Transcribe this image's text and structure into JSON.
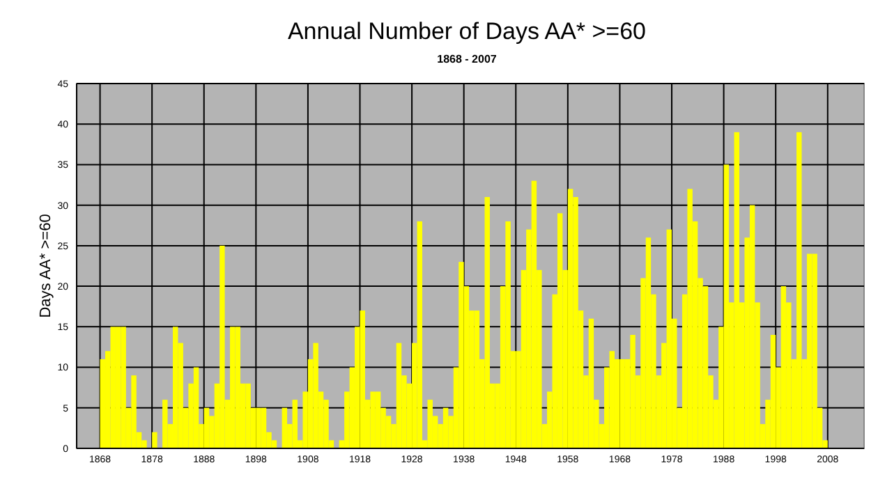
{
  "chart_data": {
    "type": "bar",
    "title": "Annual Number of Days AA* >=60",
    "subtitle": "1868 - 2007",
    "ylabel": "Days AA* >=60",
    "x": [
      1868,
      1869,
      1870,
      1871,
      1872,
      1873,
      1874,
      1875,
      1876,
      1877,
      1878,
      1879,
      1880,
      1881,
      1882,
      1883,
      1884,
      1885,
      1886,
      1887,
      1888,
      1889,
      1890,
      1891,
      1892,
      1893,
      1894,
      1895,
      1896,
      1897,
      1898,
      1899,
      1900,
      1901,
      1902,
      1903,
      1904,
      1905,
      1906,
      1907,
      1908,
      1909,
      1910,
      1911,
      1912,
      1913,
      1914,
      1915,
      1916,
      1917,
      1918,
      1919,
      1920,
      1921,
      1922,
      1923,
      1924,
      1925,
      1926,
      1927,
      1928,
      1929,
      1930,
      1931,
      1932,
      1933,
      1934,
      1935,
      1936,
      1937,
      1938,
      1939,
      1940,
      1941,
      1942,
      1943,
      1944,
      1945,
      1946,
      1947,
      1948,
      1949,
      1950,
      1951,
      1952,
      1953,
      1954,
      1955,
      1956,
      1957,
      1958,
      1959,
      1960,
      1961,
      1962,
      1963,
      1964,
      1965,
      1966,
      1967,
      1968,
      1969,
      1970,
      1971,
      1972,
      1973,
      1974,
      1975,
      1976,
      1977,
      1978,
      1979,
      1980,
      1981,
      1982,
      1983,
      1984,
      1985,
      1986,
      1987,
      1988,
      1989,
      1990,
      1991,
      1992,
      1993,
      1994,
      1995,
      1996,
      1997,
      1998,
      1999,
      2000,
      2001,
      2002,
      2003,
      2004,
      2005,
      2006,
      2007
    ],
    "values": [
      11,
      12,
      15,
      15,
      15,
      5,
      9,
      2,
      1,
      0,
      2,
      0,
      6,
      3,
      15,
      13,
      5,
      8,
      10,
      3,
      5,
      4,
      8,
      25,
      6,
      15,
      15,
      8,
      8,
      5,
      5,
      5,
      2,
      1,
      0,
      5,
      3,
      6,
      1,
      7,
      11,
      13,
      7,
      6,
      1,
      0,
      1,
      7,
      10,
      15,
      17,
      6,
      7,
      7,
      5,
      4,
      3,
      13,
      9,
      8,
      13,
      28,
      1,
      6,
      4,
      3,
      5,
      4,
      10,
      23,
      20,
      17,
      17,
      11,
      31,
      8,
      8,
      20,
      28,
      12,
      12,
      22,
      27,
      33,
      22,
      3,
      7,
      19,
      29,
      22,
      32,
      31,
      17,
      9,
      16,
      6,
      3,
      10,
      12,
      11,
      11,
      11,
      14,
      9,
      21,
      26,
      19,
      9,
      13,
      27,
      16,
      5,
      19,
      32,
      28,
      21,
      20,
      9,
      6,
      15,
      35,
      18,
      39,
      18,
      26,
      30,
      18,
      3,
      6,
      14,
      10,
      20,
      18,
      11,
      39,
      11,
      24,
      24,
      5,
      1
    ],
    "color": "#ffff00",
    "xlim": [
      1863.5,
      2015
    ],
    "xticks": [
      1868,
      1878,
      1888,
      1898,
      1908,
      1918,
      1928,
      1938,
      1948,
      1958,
      1968,
      1978,
      1988,
      1998,
      2008
    ],
    "ylim": [
      0,
      45
    ],
    "yticks": [
      0,
      5,
      10,
      15,
      20,
      25,
      30,
      35,
      40,
      45
    ],
    "grid": true
  }
}
